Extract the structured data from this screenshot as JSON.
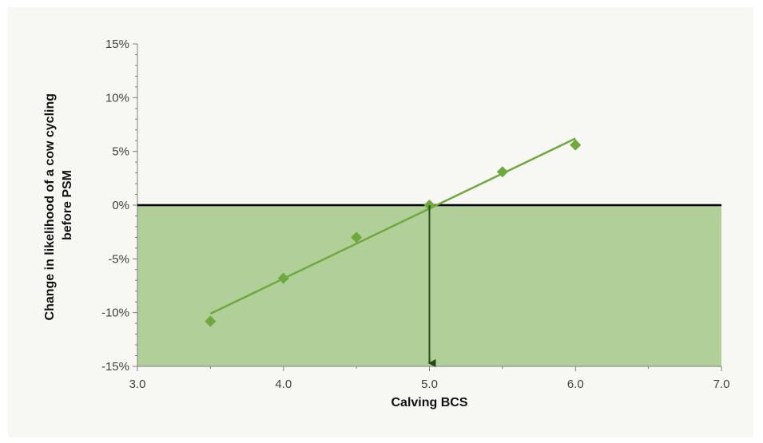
{
  "chart_data": {
    "type": "scatter",
    "title": "",
    "xlabel": "Calving BCS",
    "ylabel": "Change in likelihood of a cow cycling before PSM",
    "ylabel_lines": [
      "Change in likelihood of a cow cycling",
      "before PSM"
    ],
    "xlim": [
      3.0,
      7.0
    ],
    "ylim": [
      -15,
      15
    ],
    "x_ticks": [
      3.0,
      4.0,
      5.0,
      6.0,
      7.0
    ],
    "x_tick_labels": [
      "3.0",
      "4.0",
      "5.0",
      "6.0",
      "7.0"
    ],
    "y_ticks": [
      -15,
      -10,
      -5,
      0,
      5,
      10,
      15
    ],
    "y_tick_labels": [
      "-15%",
      "-10%",
      "-5%",
      "0%",
      "5%",
      "10%",
      "15%"
    ],
    "grid": false,
    "legend": "none",
    "series": [
      {
        "marker": "diamond",
        "x": [
          3.5,
          4.0,
          4.5,
          5.0,
          5.5,
          6.0
        ],
        "y": [
          -10.8,
          -6.8,
          -3.0,
          0.0,
          3.1,
          5.6
        ]
      }
    ],
    "trendline": {
      "x": [
        3.5,
        6.0
      ],
      "y": [
        -10.1,
        6.2
      ]
    },
    "negative_region": {
      "y_from": -15,
      "y_to": 0,
      "color": "#b1cf98"
    },
    "zero_line_color": "#000000",
    "marker_arrow": {
      "x": 5.0,
      "y_from": 0,
      "y_to": -15,
      "color": "#2b4a1c"
    },
    "colors": {
      "series": "#6fa83f",
      "background": "#f7f7f3",
      "axis": "#7f7f7f"
    }
  }
}
